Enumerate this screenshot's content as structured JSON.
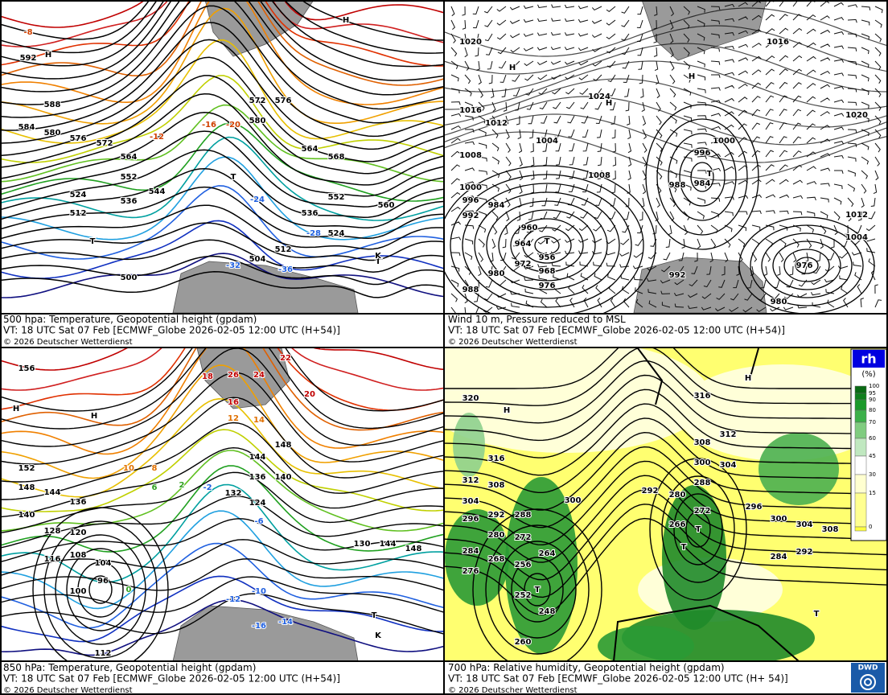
{
  "panels": [
    {
      "caption": [
        "500 hpa: Temperature, Geopotential height (gpdam)",
        "VT: 18 UTC Sat  07 Feb [ECMWF_Globe 2026-02-05 12:00 UTC  (H+54)]",
        "© 2026 Deutscher Wetterdienst"
      ],
      "labels": [
        "592",
        "588",
        "584",
        "580",
        "576",
        "572",
        "564",
        "552",
        "544",
        "536",
        "524",
        "512",
        "500",
        "580",
        "576",
        "572",
        "568",
        "564",
        "560",
        "552",
        "536",
        "524",
        "512",
        "504",
        "-8",
        "-12",
        "-16",
        "-20",
        "-24",
        "-28",
        "-32",
        "-36",
        "T",
        "T",
        "T",
        "H",
        "H",
        "K"
      ]
    },
    {
      "caption": [
        "Wind 10 m, Pressure reduced to MSL",
        "VT: 18 UTC Sat  07 Feb [ECMWF_Globe 2026-02-05 12:00 UTC (H+54)]",
        "© 2026 Deutscher Wetterdienst"
      ],
      "labels": [
        "1020",
        "1016",
        "1012",
        "1008",
        "1000",
        "996",
        "992",
        "984",
        "960",
        "964",
        "956",
        "972",
        "968",
        "976",
        "980",
        "988",
        "1024",
        "1004",
        "1008",
        "988",
        "984",
        "996",
        "1000",
        "1016",
        "1020",
        "1012",
        "1004",
        "976",
        "992",
        "980",
        "H",
        "H",
        "T",
        "T",
        "H"
      ]
    },
    {
      "caption": [
        "850 hPa:  Temperature, Geopotential height (gpdam)",
        "VT: 18 UTC Sat  07 Feb [ECMWF_Globe 2026-02-05 12:00 UTC  (H+54)]",
        "© 2026 Deutscher Wetterdienst"
      ],
      "labels": [
        "156",
        "152",
        "148",
        "144",
        "140",
        "136",
        "128",
        "120",
        "116",
        "108",
        "104",
        "100",
        "96",
        "148",
        "144",
        "140",
        "136",
        "132",
        "124",
        "130",
        "144",
        "148",
        "112",
        "26",
        "24",
        "22",
        "18",
        "20",
        "16",
        "12",
        "14",
        "10",
        "8",
        "6",
        "2",
        "-2",
        "-6",
        "0",
        "-10",
        "-12",
        "-14",
        "-16",
        "H",
        "H",
        "T",
        "K"
      ]
    },
    {
      "caption": [
        "700 hPa:  Relative humidity, Geopotential height (gpdam)",
        "VT: 18 UTC Sat  07 Feb [ECMWF_Globe  2026-02-05 12:00 UTC (H+ 54)]",
        "© 2026 Deutscher Wetterdienst"
      ],
      "labels": [
        "320",
        "316",
        "312",
        "308",
        "304",
        "296",
        "292",
        "288",
        "280",
        "272",
        "264",
        "256",
        "284",
        "276",
        "268",
        "260",
        "252",
        "248",
        "300",
        "292",
        "280",
        "272",
        "266",
        "288",
        "300",
        "304",
        "308",
        "312",
        "316",
        "296",
        "300",
        "304",
        "308",
        "292",
        "284",
        "H",
        "H",
        "T",
        "T",
        "T",
        "T"
      ]
    }
  ],
  "legend": {
    "title": "rh",
    "unit": "(%)",
    "levels": [
      100,
      95,
      90,
      80,
      70,
      60,
      45,
      30,
      15,
      0
    ]
  },
  "logo": "DWD"
}
